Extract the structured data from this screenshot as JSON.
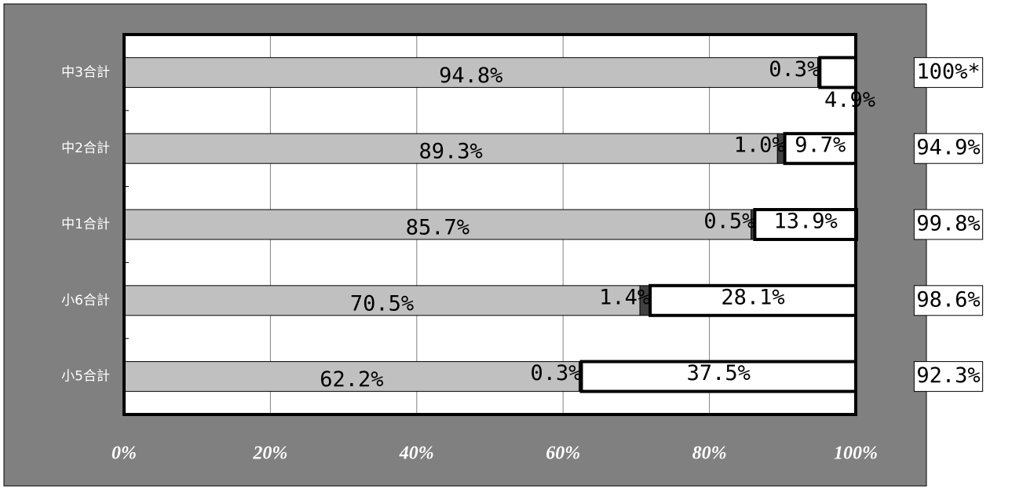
{
  "chart_data": {
    "type": "stacked_bar_horizontal",
    "categories": [
      "中3合計",
      "中2合計",
      "中1合計",
      "小6合計",
      "小5合計"
    ],
    "series": [
      {
        "color": "#c0c0c0",
        "values": [
          94.8,
          89.3,
          85.7,
          70.5,
          62.2
        ],
        "value_labels": [
          "94.8%",
          "89.3%",
          "85.7%",
          "70.5%",
          "62.2%"
        ]
      },
      {
        "color": "#404040",
        "values": [
          0.3,
          1.0,
          0.5,
          1.4,
          0.3
        ],
        "value_labels": [
          "0.3%",
          "1.0%",
          "0.5%",
          "1.4%",
          "0.3%"
        ]
      },
      {
        "color": "#ffffff",
        "values": [
          4.9,
          9.7,
          13.9,
          28.1,
          37.5
        ],
        "value_labels": [
          "4.9%",
          "9.7%",
          "13.9%",
          "28.1%",
          "37.5%"
        ]
      }
    ],
    "annotations": [
      "100%*",
      "94.9%",
      "99.8%",
      "98.6%",
      "92.3%"
    ],
    "xlim": [
      0,
      100
    ],
    "xticks": [
      {
        "value": 0,
        "label": "0%"
      },
      {
        "value": 20,
        "label": "20%"
      },
      {
        "value": 40,
        "label": "40%"
      },
      {
        "value": 60,
        "label": "60%"
      },
      {
        "value": 80,
        "label": "80%"
      },
      {
        "value": 100,
        "label": "100%"
      }
    ],
    "grid": true
  }
}
